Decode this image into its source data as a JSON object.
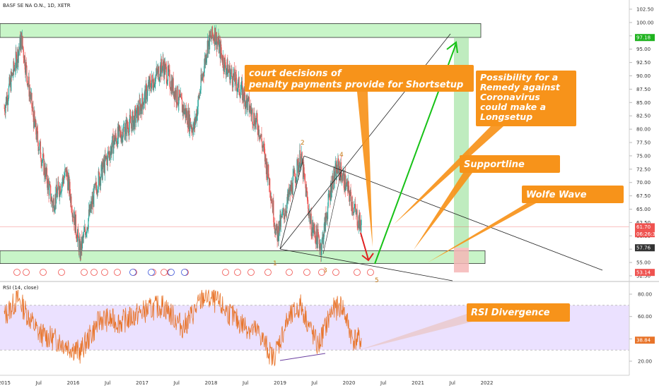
{
  "chart_title": "BASF SE NA O.N., 1D, XETR",
  "rsi_title": "RSI (14, close)",
  "colors": {
    "up": "#26a69a",
    "down": "#ef5350",
    "rsi_line": "#e8742a",
    "rsi_band": "#e6d9ff",
    "zone_fill": "#c8f5c8",
    "zone_stroke": "#333333",
    "callout": "#f7931a",
    "arrow_green": "#17c217",
    "arrow_red": "#e02020",
    "target_zone": "#a9e6a9",
    "stop_zone": "#f4b6b6"
  },
  "price_axis": {
    "ticks": [
      "102.50",
      "100.00",
      "97.50",
      "95.00",
      "92.50",
      "90.00",
      "87.50",
      "85.00",
      "82.50",
      "80.00",
      "77.50",
      "75.00",
      "72.50",
      "70.00",
      "67.50",
      "65.00",
      "62.50",
      "60.00",
      "57.50",
      "55.00",
      "52.50"
    ],
    "ylim": [
      51.5,
      103.5
    ],
    "tags": [
      {
        "label": "97.18",
        "value": 97.18,
        "color": "#1fb31f"
      },
      {
        "label": "61.70",
        "value": 61.7,
        "color": "#ef5350"
      },
      {
        "label": "06:26:37",
        "value": 60.4,
        "color": "#ef5350"
      },
      {
        "label": "57.76",
        "value": 57.76,
        "color": "#333333"
      },
      {
        "label": "53.14",
        "value": 53.14,
        "color": "#ef5350"
      }
    ]
  },
  "rsi_axis": {
    "ticks": [
      "80.00",
      "60.00",
      "40.00",
      "20.00"
    ],
    "ylim": [
      12,
      90
    ],
    "tag": "38.84",
    "tag_value": 38.84,
    "upper": 70,
    "lower": 30
  },
  "time_axis": {
    "labels": [
      "2015",
      "Jul",
      "2016",
      "Jul",
      "2017",
      "Jul",
      "2018",
      "Jul",
      "2019",
      "Jul",
      "2020",
      "Jul",
      "2021",
      "Jul",
      "2022"
    ]
  },
  "annotations": {
    "court": "court decisions of\npenalty payments provide for Shortsetup",
    "remedy": "Possibility for a\nRemedy against\nCoronavirus\ncould make a\nLongsetup",
    "support": "Supportline",
    "wolfe": "Wolfe Wave",
    "rsi": "RSI Divergence"
  },
  "wave_labels": [
    "1",
    "2",
    "3",
    "4",
    "5"
  ],
  "chart_data": [
    {
      "type": "candlestick",
      "title": "BASF SE NA O.N., 1D, XETR",
      "x": [
        "2015",
        "Jul 2015",
        "2016",
        "Jul 2016",
        "2017",
        "Jul 2017",
        "2018",
        "Jul 2018",
        "2019",
        "Jul 2019",
        "2020",
        "Mar 2020"
      ],
      "close": [
        86.0,
        96.0,
        64.0,
        80.5,
        88.0,
        93.5,
        97.0,
        81.0,
        61.5,
        73.5,
        67.5,
        61.7
      ],
      "ylim": [
        51.5,
        103.5
      ],
      "zones": [
        {
          "name": "resistance",
          "range": [
            97.2,
            99.8
          ]
        },
        {
          "name": "support",
          "range": [
            54.8,
            57.2
          ]
        }
      ],
      "targets": [
        97.18,
        53.14
      ],
      "last": 61.7
    },
    {
      "type": "line",
      "title": "RSI (14, close)",
      "x": [
        "2015",
        "Jul 2015",
        "2016",
        "Jul 2016",
        "2017",
        "Jul 2017",
        "2018",
        "Jul 2018",
        "2019",
        "Jul 2019",
        "2020",
        "Mar 2020"
      ],
      "values": [
        55,
        72,
        30,
        58,
        64,
        62,
        70,
        48,
        28,
        60,
        45,
        38.84
      ],
      "ylim": [
        12,
        90
      ],
      "bands": [
        30,
        70
      ]
    }
  ]
}
